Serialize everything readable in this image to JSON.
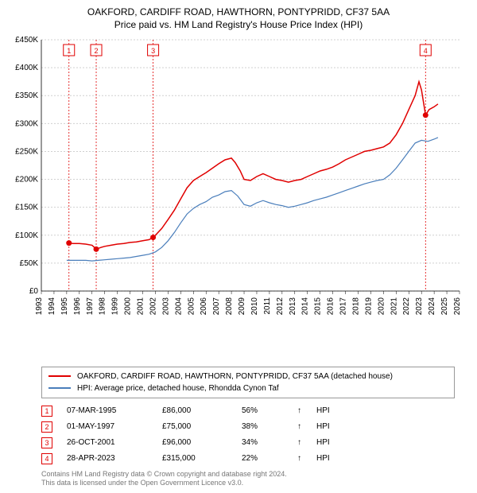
{
  "title": "OAKFORD, CARDIFF ROAD, HAWTHORN, PONTYPRIDD, CF37 5AA",
  "subtitle": "Price paid vs. HM Land Registry's House Price Index (HPI)",
  "chart": {
    "type": "line",
    "background_color": "#ffffff",
    "grid_color": "#d0d0d0",
    "grid_dash": "2,2",
    "x": {
      "min": 1993,
      "max": 2026,
      "ticks": [
        1993,
        1994,
        1995,
        1996,
        1997,
        1998,
        1999,
        2000,
        2001,
        2002,
        2003,
        2004,
        2005,
        2006,
        2007,
        2008,
        2009,
        2010,
        2011,
        2012,
        2013,
        2014,
        2015,
        2016,
        2017,
        2018,
        2019,
        2020,
        2021,
        2022,
        2023,
        2024,
        2025,
        2026
      ],
      "tick_fontsize": 10,
      "tick_rotation": -90
    },
    "y": {
      "min": 0,
      "max": 450000,
      "ticks": [
        0,
        50000,
        100000,
        150000,
        200000,
        250000,
        300000,
        350000,
        400000,
        450000
      ],
      "tick_labels": [
        "£0",
        "£50K",
        "£100K",
        "£150K",
        "£200K",
        "£250K",
        "£300K",
        "£350K",
        "£400K",
        "£450K"
      ],
      "tick_fontsize": 10
    },
    "series": [
      {
        "name": "OAKFORD, CARDIFF ROAD, HAWTHORN, PONTYPRIDD, CF37 5AA (detached house)",
        "color": "#e00000",
        "line_width": 1.5,
        "points": [
          [
            1995.0,
            86000
          ],
          [
            1995.5,
            85000
          ],
          [
            1996.0,
            85000
          ],
          [
            1996.5,
            84000
          ],
          [
            1997.0,
            82000
          ],
          [
            1997.33,
            75000
          ],
          [
            1997.7,
            78000
          ],
          [
            1998.0,
            80000
          ],
          [
            1998.5,
            82000
          ],
          [
            1999.0,
            84000
          ],
          [
            1999.5,
            85000
          ],
          [
            2000.0,
            87000
          ],
          [
            2000.5,
            88000
          ],
          [
            2001.0,
            90000
          ],
          [
            2001.5,
            92000
          ],
          [
            2001.82,
            96000
          ],
          [
            2002.0,
            100000
          ],
          [
            2002.5,
            112000
          ],
          [
            2003.0,
            128000
          ],
          [
            2003.5,
            145000
          ],
          [
            2004.0,
            165000
          ],
          [
            2004.5,
            185000
          ],
          [
            2005.0,
            198000
          ],
          [
            2005.5,
            205000
          ],
          [
            2006.0,
            212000
          ],
          [
            2006.5,
            220000
          ],
          [
            2007.0,
            228000
          ],
          [
            2007.5,
            235000
          ],
          [
            2008.0,
            238000
          ],
          [
            2008.3,
            230000
          ],
          [
            2008.7,
            215000
          ],
          [
            2009.0,
            200000
          ],
          [
            2009.5,
            198000
          ],
          [
            2010.0,
            205000
          ],
          [
            2010.5,
            210000
          ],
          [
            2011.0,
            205000
          ],
          [
            2011.5,
            200000
          ],
          [
            2012.0,
            198000
          ],
          [
            2012.5,
            195000
          ],
          [
            2013.0,
            198000
          ],
          [
            2013.5,
            200000
          ],
          [
            2014.0,
            205000
          ],
          [
            2014.5,
            210000
          ],
          [
            2015.0,
            215000
          ],
          [
            2015.5,
            218000
          ],
          [
            2016.0,
            222000
          ],
          [
            2016.5,
            228000
          ],
          [
            2017.0,
            235000
          ],
          [
            2017.5,
            240000
          ],
          [
            2018.0,
            245000
          ],
          [
            2018.5,
            250000
          ],
          [
            2019.0,
            252000
          ],
          [
            2019.5,
            255000
          ],
          [
            2020.0,
            258000
          ],
          [
            2020.5,
            265000
          ],
          [
            2021.0,
            280000
          ],
          [
            2021.5,
            300000
          ],
          [
            2022.0,
            325000
          ],
          [
            2022.5,
            350000
          ],
          [
            2022.8,
            375000
          ],
          [
            2023.0,
            360000
          ],
          [
            2023.32,
            315000
          ],
          [
            2023.6,
            325000
          ],
          [
            2024.0,
            330000
          ],
          [
            2024.3,
            335000
          ]
        ]
      },
      {
        "name": "HPI: Average price, detached house, Rhondda Cynon Taf",
        "color": "#4a7ebb",
        "line_width": 1.2,
        "points": [
          [
            1995.0,
            55000
          ],
          [
            1995.5,
            55000
          ],
          [
            1996.0,
            55000
          ],
          [
            1996.5,
            55000
          ],
          [
            1997.0,
            54000
          ],
          [
            1997.5,
            55000
          ],
          [
            1998.0,
            56000
          ],
          [
            1998.5,
            57000
          ],
          [
            1999.0,
            58000
          ],
          [
            1999.5,
            59000
          ],
          [
            2000.0,
            60000
          ],
          [
            2000.5,
            62000
          ],
          [
            2001.0,
            64000
          ],
          [
            2001.5,
            66000
          ],
          [
            2002.0,
            70000
          ],
          [
            2002.5,
            78000
          ],
          [
            2003.0,
            90000
          ],
          [
            2003.5,
            105000
          ],
          [
            2004.0,
            122000
          ],
          [
            2004.5,
            138000
          ],
          [
            2005.0,
            148000
          ],
          [
            2005.5,
            155000
          ],
          [
            2006.0,
            160000
          ],
          [
            2006.5,
            168000
          ],
          [
            2007.0,
            172000
          ],
          [
            2007.5,
            178000
          ],
          [
            2008.0,
            180000
          ],
          [
            2008.5,
            170000
          ],
          [
            2009.0,
            155000
          ],
          [
            2009.5,
            152000
          ],
          [
            2010.0,
            158000
          ],
          [
            2010.5,
            162000
          ],
          [
            2011.0,
            158000
          ],
          [
            2011.5,
            155000
          ],
          [
            2012.0,
            153000
          ],
          [
            2012.5,
            150000
          ],
          [
            2013.0,
            152000
          ],
          [
            2013.5,
            155000
          ],
          [
            2014.0,
            158000
          ],
          [
            2014.5,
            162000
          ],
          [
            2015.0,
            165000
          ],
          [
            2015.5,
            168000
          ],
          [
            2016.0,
            172000
          ],
          [
            2016.5,
            176000
          ],
          [
            2017.0,
            180000
          ],
          [
            2017.5,
            184000
          ],
          [
            2018.0,
            188000
          ],
          [
            2018.5,
            192000
          ],
          [
            2019.0,
            195000
          ],
          [
            2019.5,
            198000
          ],
          [
            2020.0,
            200000
          ],
          [
            2020.5,
            208000
          ],
          [
            2021.0,
            220000
          ],
          [
            2021.5,
            235000
          ],
          [
            2022.0,
            250000
          ],
          [
            2022.5,
            265000
          ],
          [
            2023.0,
            270000
          ],
          [
            2023.5,
            268000
          ],
          [
            2024.0,
            272000
          ],
          [
            2024.3,
            275000
          ]
        ]
      }
    ],
    "markers": [
      {
        "num": "1",
        "x": 1995.18,
        "y": 86000,
        "dot_color": "#e00000"
      },
      {
        "num": "2",
        "x": 1997.33,
        "y": 75000,
        "dot_color": "#e00000"
      },
      {
        "num": "3",
        "x": 2001.82,
        "y": 96000,
        "dot_color": "#e00000"
      },
      {
        "num": "4",
        "x": 2023.32,
        "y": 315000,
        "dot_color": "#e00000"
      }
    ],
    "marker_vline_color": "#e00000",
    "marker_vline_dash": "2,2",
    "marker_box_border": "#e00000",
    "marker_box_bg": "#ffffff",
    "marker_box_fontsize": 9
  },
  "legend": {
    "border_color": "#999999",
    "fontsize": 10,
    "items": [
      {
        "label": "OAKFORD, CARDIFF ROAD, HAWTHORN, PONTYPRIDD, CF37 5AA (detached house)",
        "color": "#e00000"
      },
      {
        "label": "HPI: Average price, detached house, Rhondda Cynon Taf",
        "color": "#4a7ebb"
      }
    ]
  },
  "events": [
    {
      "num": "1",
      "date": "07-MAR-1995",
      "price": "£86,000",
      "pct": "56%",
      "arrow": "↑",
      "suffix": "HPI"
    },
    {
      "num": "2",
      "date": "01-MAY-1997",
      "price": "£75,000",
      "pct": "38%",
      "arrow": "↑",
      "suffix": "HPI"
    },
    {
      "num": "3",
      "date": "26-OCT-2001",
      "price": "£96,000",
      "pct": "34%",
      "arrow": "↑",
      "suffix": "HPI"
    },
    {
      "num": "4",
      "date": "28-APR-2023",
      "price": "£315,000",
      "pct": "22%",
      "arrow": "↑",
      "suffix": "HPI"
    }
  ],
  "footer": {
    "line1": "Contains HM Land Registry data © Crown copyright and database right 2024.",
    "line2": "This data is licensed under the Open Government Licence v3.0."
  }
}
